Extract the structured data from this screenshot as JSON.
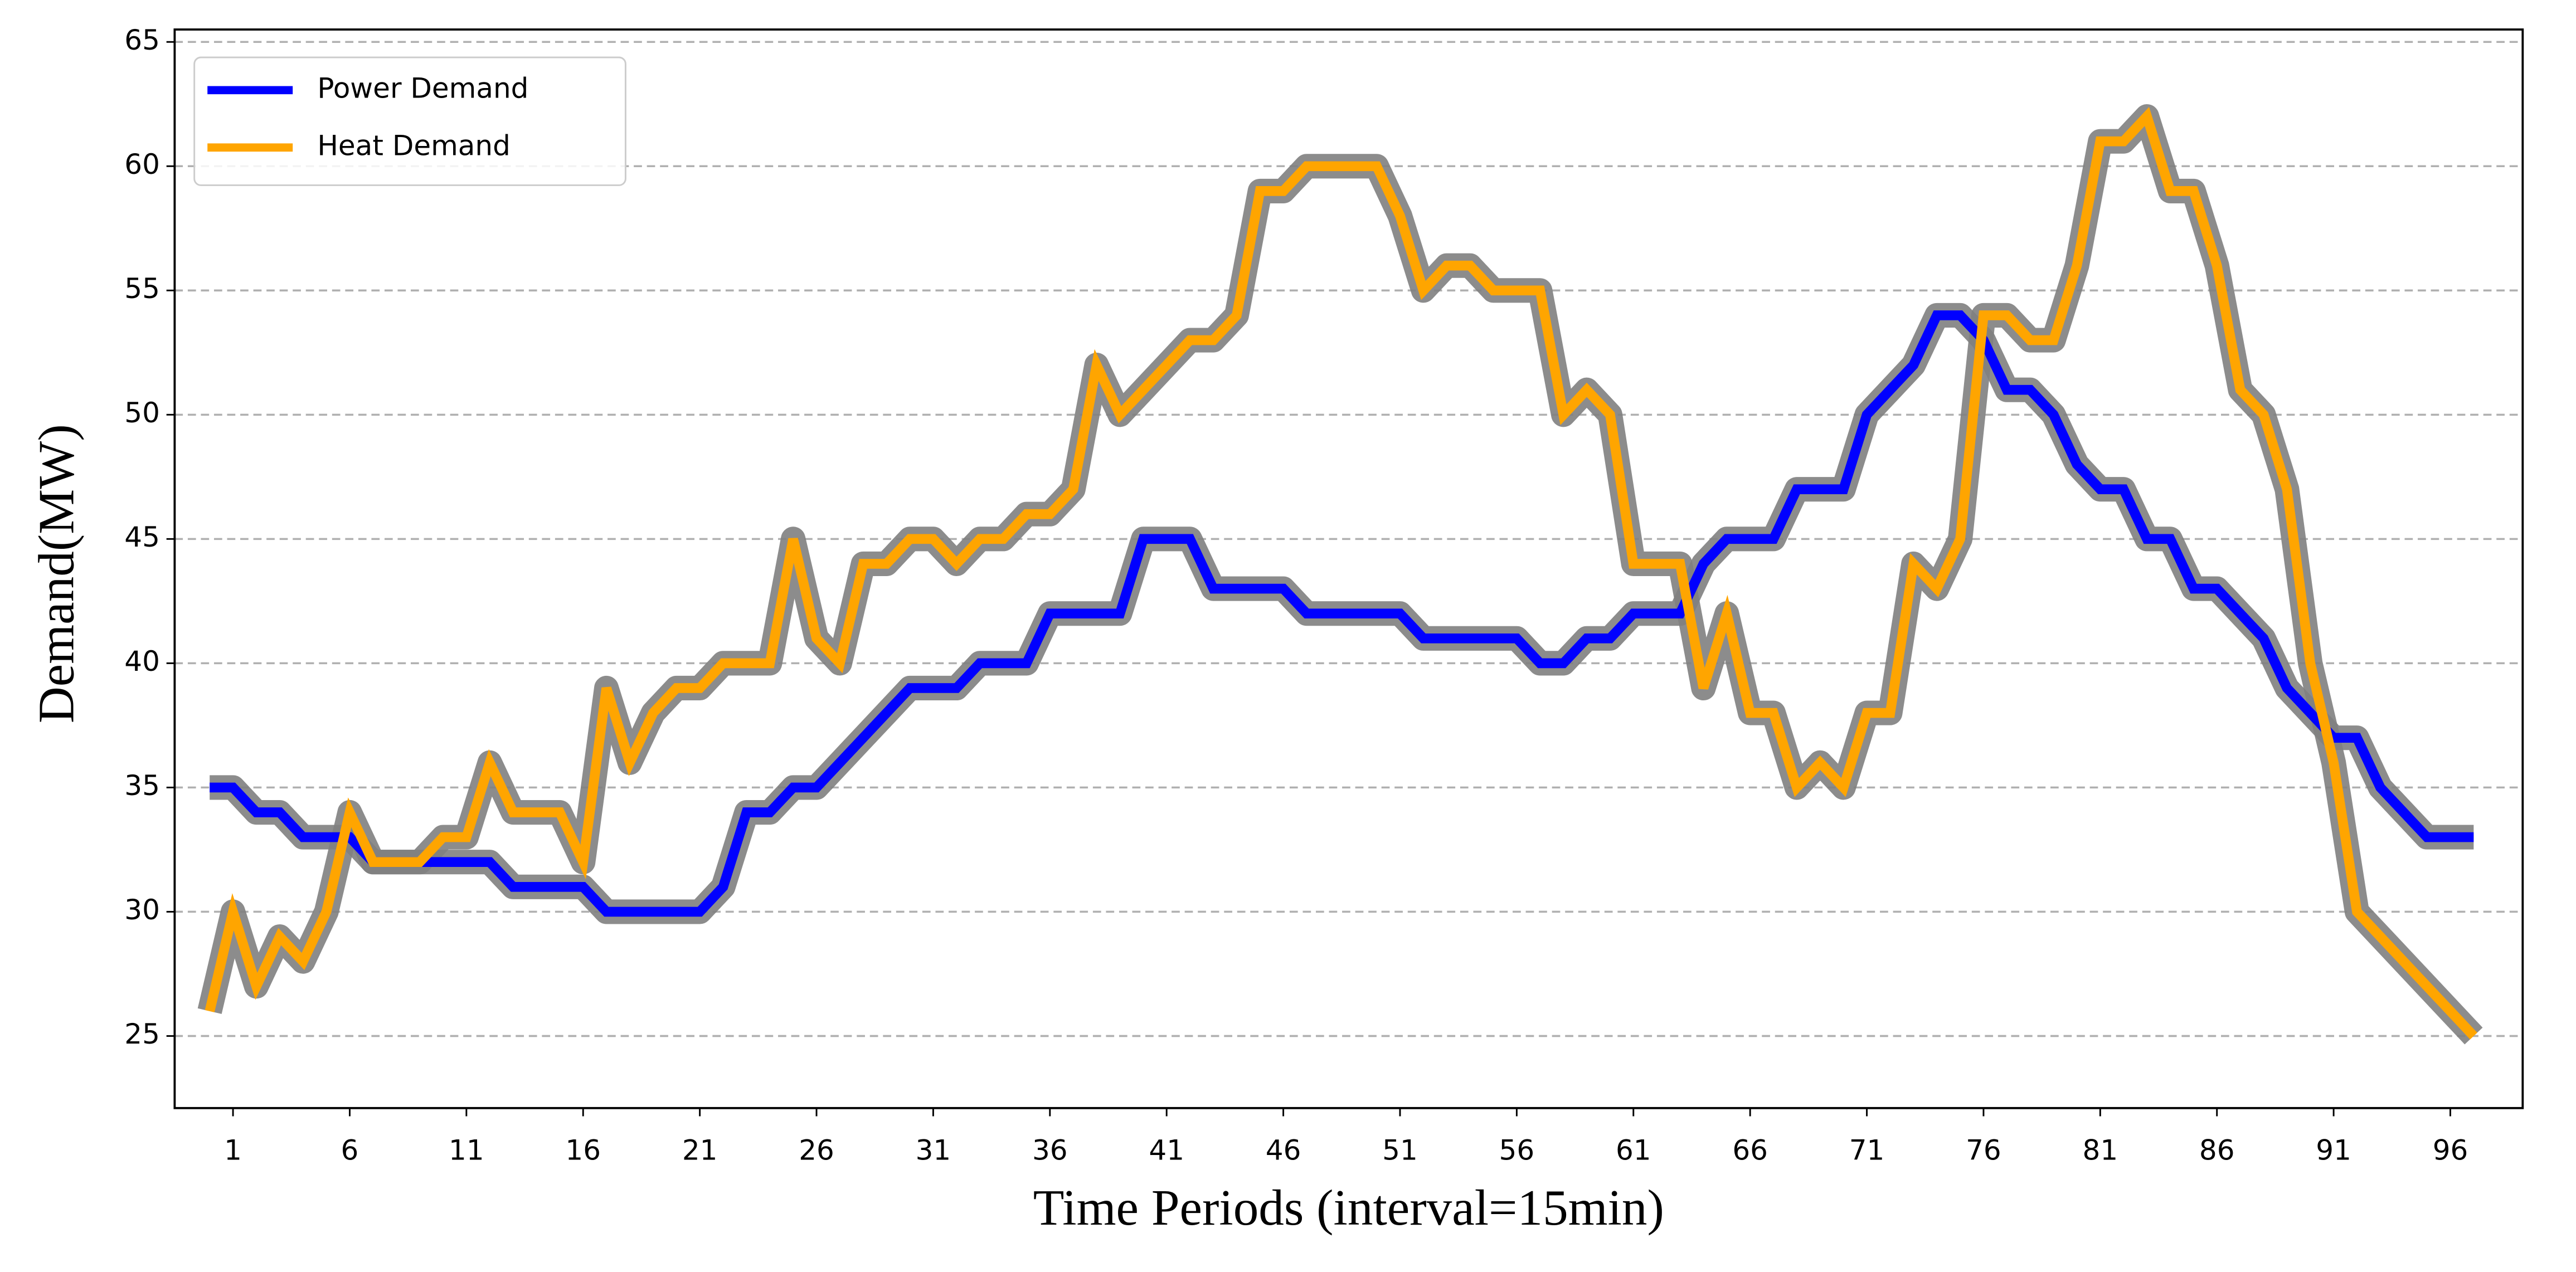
{
  "chart_data": {
    "type": "line",
    "x": [
      0,
      1,
      2,
      3,
      4,
      5,
      6,
      7,
      8,
      9,
      10,
      11,
      12,
      13,
      14,
      15,
      16,
      17,
      18,
      19,
      20,
      21,
      22,
      23,
      24,
      25,
      26,
      27,
      28,
      29,
      30,
      31,
      32,
      33,
      34,
      35,
      36,
      37,
      38,
      39,
      40,
      41,
      42,
      43,
      44,
      45,
      46,
      47,
      48,
      49,
      50,
      51,
      52,
      53,
      54,
      55,
      56,
      57,
      58,
      59,
      60,
      61,
      62,
      63,
      64,
      65,
      66,
      67,
      68,
      69,
      70,
      71,
      72,
      73,
      74,
      75,
      76,
      77,
      78,
      79,
      80,
      81,
      82,
      83,
      84,
      85,
      86,
      87,
      88,
      89,
      90,
      91,
      92,
      93,
      94,
      95,
      96,
      97
    ],
    "series": [
      {
        "name": "Power Demand",
        "color": "#0000ff",
        "values": [
          35,
          35,
          34,
          34,
          33,
          33,
          33,
          32,
          32,
          32,
          32,
          32,
          32,
          31,
          31,
          31,
          31,
          30,
          30,
          30,
          30,
          30,
          31,
          34,
          34,
          35,
          35,
          36,
          37,
          38,
          39,
          39,
          39,
          40,
          40,
          40,
          42,
          42,
          42,
          42,
          45,
          45,
          45,
          43,
          43,
          43,
          43,
          42,
          42,
          42,
          42,
          42,
          41,
          41,
          41,
          41,
          41,
          40,
          40,
          41,
          41,
          42,
          42,
          42,
          44,
          45,
          45,
          45,
          47,
          47,
          47,
          50,
          51,
          52,
          54,
          54,
          53,
          51,
          51,
          50,
          48,
          47,
          47,
          45,
          45,
          43,
          43,
          42,
          41,
          39,
          38,
          37,
          37,
          35,
          34,
          33,
          33,
          33
        ]
      },
      {
        "name": "Heat Demand",
        "color": "#ffa500",
        "values": [
          26,
          30,
          27,
          29,
          28,
          30,
          34,
          32,
          32,
          32,
          33,
          33,
          36,
          34,
          34,
          34,
          32,
          39,
          36,
          38,
          39,
          39,
          40,
          40,
          40,
          45,
          41,
          40,
          44,
          44,
          45,
          45,
          44,
          45,
          45,
          46,
          46,
          47,
          52,
          50,
          51,
          52,
          53,
          53,
          54,
          59,
          59,
          60,
          60,
          60,
          60,
          58,
          55,
          56,
          56,
          55,
          55,
          55,
          50,
          51,
          50,
          44,
          44,
          44,
          39,
          42,
          38,
          38,
          35,
          36,
          35,
          38,
          38,
          44,
          43,
          45,
          54,
          54,
          53,
          53,
          56,
          61,
          61,
          62,
          59,
          59,
          56,
          51,
          50,
          47,
          40,
          36,
          30,
          29,
          28,
          27,
          26,
          25
        ]
      }
    ],
    "xlabel": "Time Periods (interval=15min)",
    "ylabel": "Demand(MW)",
    "xlim": [
      -1.5,
      99.1
    ],
    "ylim": [
      22.1,
      65.5
    ],
    "xticks": [
      1,
      6,
      11,
      16,
      21,
      26,
      31,
      36,
      41,
      46,
      51,
      56,
      61,
      66,
      71,
      76,
      81,
      86,
      91,
      96
    ],
    "yticks": [
      25,
      30,
      35,
      40,
      45,
      50,
      55,
      60,
      65
    ],
    "grid": true,
    "legend": "upper left"
  }
}
